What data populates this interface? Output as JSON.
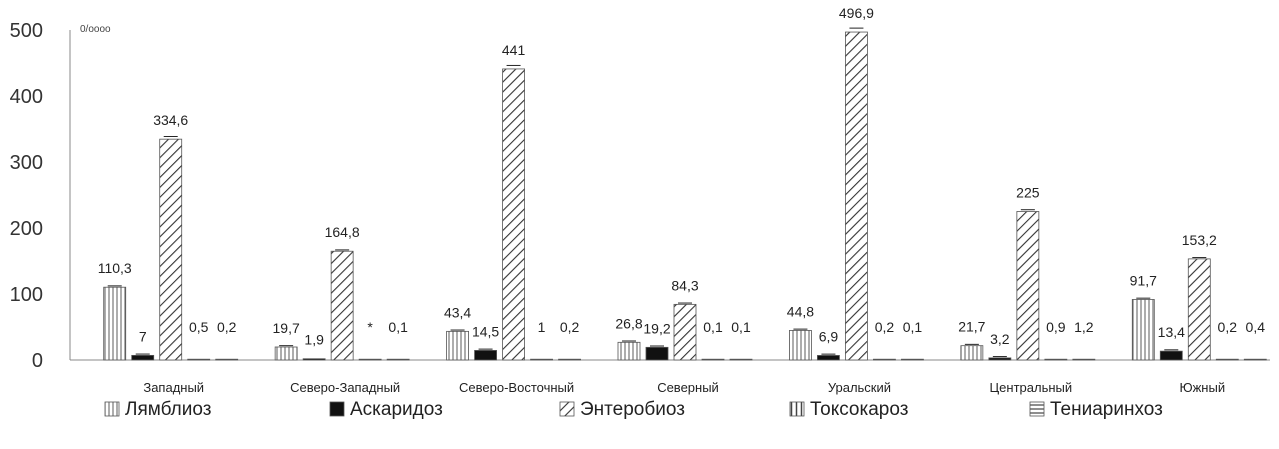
{
  "chart_data": {
    "type": "bar",
    "unit_label": "0/оооо",
    "ylim": [
      0,
      500
    ],
    "yticks": [
      0,
      100,
      200,
      300,
      400,
      500
    ],
    "grid": false,
    "legend_position": "bottom",
    "categories": [
      "Западный",
      "Северо-Западный",
      "Северо-Восточный",
      "Северный",
      "Уральский",
      "Центральный",
      "Южный"
    ],
    "series": [
      {
        "name": "Лямблиоз",
        "pattern": "vlines-fine",
        "values": [
          110.3,
          19.7,
          43.4,
          26.8,
          44.8,
          21.7,
          91.7
        ],
        "labels": [
          "110,3",
          "19,7",
          "43,4",
          "26,8",
          "44,8",
          "21,7",
          "91,7"
        ]
      },
      {
        "name": "Аскаридоз",
        "pattern": "solid",
        "values": [
          7,
          1.9,
          14.5,
          19.2,
          6.9,
          3.2,
          13.4
        ],
        "labels": [
          "7",
          "1,9",
          "14,5",
          "19,2",
          "6,9",
          "3,2",
          "13,4"
        ]
      },
      {
        "name": "Энтеробиоз",
        "pattern": "diagonal",
        "values": [
          334.6,
          164.8,
          441,
          84.3,
          496.9,
          225,
          153.2
        ],
        "labels": [
          "334,6",
          "164,8",
          "441",
          "84,3",
          "496,9",
          "225",
          "153,2"
        ]
      },
      {
        "name": "Токсокароз",
        "pattern": "vlines",
        "values": [
          0.5,
          0,
          1,
          0.1,
          0.2,
          0.9,
          0.2
        ],
        "labels": [
          "0,5",
          "*",
          "1",
          "0,1",
          "0,2",
          "0,9",
          "0,2"
        ]
      },
      {
        "name": "Тениаринхоз",
        "pattern": "hlines",
        "values": [
          0.2,
          0.1,
          0.2,
          0.1,
          0.1,
          1.2,
          0.4
        ],
        "labels": [
          "0,2",
          "0,1",
          "0,2",
          "0,1",
          "0,1",
          "1,2",
          "0,4"
        ]
      }
    ],
    "colors": {
      "bar_stroke": "#555555",
      "solid": "#111111",
      "axis": "#888888"
    }
  }
}
